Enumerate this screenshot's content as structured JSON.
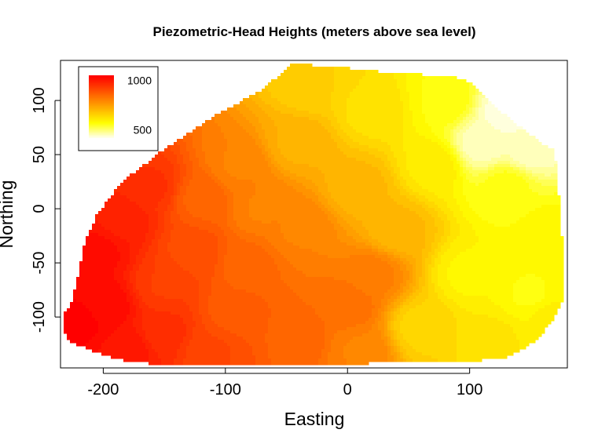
{
  "chart_data": {
    "type": "heatmap",
    "title": "Piezometric-Head Heights (meters above sea level)",
    "xlabel": "Easting",
    "ylabel": "Northing",
    "xlim": [
      -235,
      180
    ],
    "ylim": [
      -147,
      137
    ],
    "x_ticks": [
      -200,
      -100,
      0,
      100
    ],
    "y_ticks": [
      -100,
      -50,
      0,
      50,
      100
    ],
    "x_tick_labels": [
      "-200",
      "-100",
      "0",
      "100"
    ],
    "y_tick_labels": [
      "-100",
      "-50",
      "0",
      "50",
      "100"
    ],
    "color_scale": {
      "low_color": "#ffffff",
      "mid_color": "#ffff00",
      "high_color": "#ff0000"
    },
    "value_range": [
      400,
      1050
    ],
    "legend": {
      "position": "top-left",
      "labels": [
        "1000",
        "500"
      ],
      "label_values": [
        1000,
        500
      ]
    },
    "surface_boundary": [
      [
        -233,
        -112
      ],
      [
        -228,
        -122
      ],
      [
        -215,
        -128
      ],
      [
        -200,
        -135
      ],
      [
        -175,
        -142
      ],
      [
        -155,
        -143
      ],
      [
        -100,
        -143
      ],
      [
        0,
        -143
      ],
      [
        100,
        -141
      ],
      [
        130,
        -137
      ],
      [
        155,
        -122
      ],
      [
        168,
        -102
      ],
      [
        177,
        -82
      ],
      [
        178,
        -55
      ],
      [
        175,
        -20
      ],
      [
        173,
        10
      ],
      [
        172,
        35
      ],
      [
        168,
        55
      ],
      [
        162,
        58
      ],
      [
        150,
        68
      ],
      [
        125,
        90
      ],
      [
        105,
        112
      ],
      [
        96,
        120
      ],
      [
        80,
        123
      ],
      [
        40,
        125
      ],
      [
        0,
        130
      ],
      [
        -45,
        134
      ],
      [
        -70,
        110
      ],
      [
        -110,
        85
      ],
      [
        -150,
        55
      ],
      [
        -185,
        25
      ],
      [
        -205,
        -5
      ],
      [
        -215,
        -30
      ],
      [
        -220,
        -60
      ],
      [
        -226,
        -85
      ],
      [
        -233,
        -100
      ]
    ],
    "control_points": [
      {
        "x": -220,
        "y": -105,
        "value": 1045
      },
      {
        "x": -200,
        "y": -90,
        "value": 1035
      },
      {
        "x": -205,
        "y": -40,
        "value": 1025
      },
      {
        "x": -185,
        "y": -10,
        "value": 990
      },
      {
        "x": -160,
        "y": 20,
        "value": 955
      },
      {
        "x": -180,
        "y": -130,
        "value": 1010
      },
      {
        "x": -150,
        "y": -115,
        "value": 960
      },
      {
        "x": -150,
        "y": -70,
        "value": 930
      },
      {
        "x": -125,
        "y": -40,
        "value": 900
      },
      {
        "x": -120,
        "y": 10,
        "value": 860
      },
      {
        "x": -110,
        "y": -130,
        "value": 910
      },
      {
        "x": -90,
        "y": -95,
        "value": 870
      },
      {
        "x": -80,
        "y": -50,
        "value": 850
      },
      {
        "x": -90,
        "y": 40,
        "value": 800
      },
      {
        "x": -70,
        "y": 0,
        "value": 800
      },
      {
        "x": -40,
        "y": -20,
        "value": 800
      },
      {
        "x": -40,
        "y": -120,
        "value": 860
      },
      {
        "x": -40,
        "y": 60,
        "value": 710
      },
      {
        "x": -30,
        "y": 115,
        "value": 650
      },
      {
        "x": 0,
        "y": -90,
        "value": 840
      },
      {
        "x": 20,
        "y": -60,
        "value": 810
      },
      {
        "x": 10,
        "y": -130,
        "value": 800
      },
      {
        "x": 10,
        "y": 20,
        "value": 700
      },
      {
        "x": 20,
        "y": 90,
        "value": 620
      },
      {
        "x": 40,
        "y": -20,
        "value": 700
      },
      {
        "x": 60,
        "y": -110,
        "value": 640
      },
      {
        "x": 70,
        "y": 40,
        "value": 600
      },
      {
        "x": 80,
        "y": 100,
        "value": 560
      },
      {
        "x": 100,
        "y": -60,
        "value": 580
      },
      {
        "x": 110,
        "y": 60,
        "value": 440
      },
      {
        "x": 120,
        "y": -120,
        "value": 610
      },
      {
        "x": 130,
        "y": 20,
        "value": 550
      },
      {
        "x": 130,
        "y": 90,
        "value": 420
      },
      {
        "x": 150,
        "y": 55,
        "value": 440
      },
      {
        "x": 150,
        "y": -80,
        "value": 560
      },
      {
        "x": 165,
        "y": -20,
        "value": 570
      },
      {
        "x": 165,
        "y": -100,
        "value": 590
      }
    ]
  }
}
